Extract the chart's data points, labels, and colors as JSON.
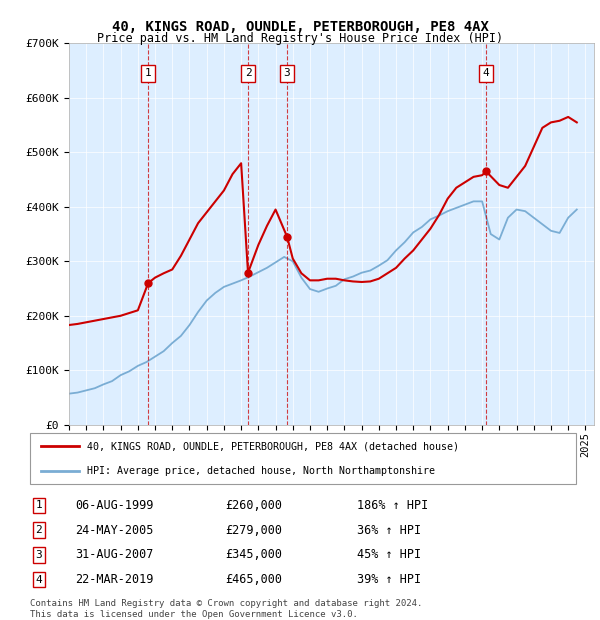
{
  "title1": "40, KINGS ROAD, OUNDLE, PETERBOROUGH, PE8 4AX",
  "title2": "Price paid vs. HM Land Registry's House Price Index (HPI)",
  "hpi_label": "HPI: Average price, detached house, North Northamptonshire",
  "property_label": "40, KINGS ROAD, OUNDLE, PETERBOROUGH, PE8 4AX (detached house)",
  "footer": "Contains HM Land Registry data © Crown copyright and database right 2024.\nThis data is licensed under the Open Government Licence v3.0.",
  "transactions": [
    {
      "num": 1,
      "date": "06-AUG-1999",
      "year": 1999.6,
      "price": 260000,
      "label": "186% ↑ HPI"
    },
    {
      "num": 2,
      "date": "24-MAY-2005",
      "year": 2005.4,
      "price": 279000,
      "label": "36% ↑ HPI"
    },
    {
      "num": 3,
      "date": "31-AUG-2007",
      "year": 2007.67,
      "price": 345000,
      "label": "45% ↑ HPI"
    },
    {
      "num": 4,
      "date": "22-MAR-2019",
      "year": 2019.23,
      "price": 465000,
      "label": "39% ↑ HPI"
    }
  ],
  "red_color": "#cc0000",
  "blue_color": "#7aadd4",
  "background_color": "#ddeeff",
  "ylim": [
    0,
    700000
  ],
  "xlim_start": 1995,
  "xlim_end": 2025.5,
  "yticks": [
    0,
    100000,
    200000,
    300000,
    400000,
    500000,
    600000,
    700000
  ],
  "ytick_labels": [
    "£0",
    "£100K",
    "£200K",
    "£300K",
    "£400K",
    "£500K",
    "£600K",
    "£700K"
  ],
  "xticks": [
    1995,
    1996,
    1997,
    1998,
    1999,
    2000,
    2001,
    2002,
    2003,
    2004,
    2005,
    2006,
    2007,
    2008,
    2009,
    2010,
    2011,
    2012,
    2013,
    2014,
    2015,
    2016,
    2017,
    2018,
    2019,
    2020,
    2021,
    2022,
    2023,
    2024,
    2025
  ],
  "hpi_x": [
    1995.0,
    1995.5,
    1996.0,
    1996.5,
    1997.0,
    1997.5,
    1998.0,
    1998.5,
    1999.0,
    1999.5,
    2000.0,
    2000.5,
    2001.0,
    2001.5,
    2002.0,
    2002.5,
    2003.0,
    2003.5,
    2004.0,
    2004.5,
    2005.0,
    2005.5,
    2006.0,
    2006.5,
    2007.0,
    2007.5,
    2008.0,
    2008.5,
    2009.0,
    2009.5,
    2010.0,
    2010.5,
    2011.0,
    2011.5,
    2012.0,
    2012.5,
    2013.0,
    2013.5,
    2014.0,
    2014.5,
    2015.0,
    2015.5,
    2016.0,
    2016.5,
    2017.0,
    2017.5,
    2018.0,
    2018.5,
    2019.0,
    2019.5,
    2020.0,
    2020.5,
    2021.0,
    2021.5,
    2022.0,
    2022.5,
    2023.0,
    2023.5,
    2024.0,
    2024.5
  ],
  "hpi_y": [
    57000,
    59000,
    63000,
    67000,
    74000,
    80000,
    91000,
    98000,
    108000,
    115000,
    125000,
    135000,
    150000,
    163000,
    183000,
    207000,
    228000,
    242000,
    253000,
    259000,
    265000,
    272000,
    280000,
    288000,
    298000,
    308000,
    300000,
    270000,
    249000,
    244000,
    250000,
    255000,
    267000,
    272000,
    279000,
    283000,
    292000,
    302000,
    320000,
    335000,
    353000,
    363000,
    377000,
    384000,
    392000,
    398000,
    404000,
    410000,
    410000,
    350000,
    340000,
    380000,
    395000,
    392000,
    380000,
    368000,
    356000,
    352000,
    380000,
    395000
  ],
  "red_x": [
    1995.0,
    1995.5,
    1996.0,
    1996.5,
    1997.0,
    1997.5,
    1998.0,
    1998.5,
    1999.0,
    1999.6,
    2000.0,
    2000.5,
    2001.0,
    2001.5,
    2002.0,
    2002.5,
    2003.0,
    2003.5,
    2004.0,
    2004.5,
    2005.0,
    2005.4,
    2006.0,
    2006.5,
    2007.0,
    2007.67,
    2008.0,
    2008.5,
    2009.0,
    2009.5,
    2010.0,
    2010.5,
    2011.0,
    2011.5,
    2012.0,
    2012.5,
    2013.0,
    2013.5,
    2014.0,
    2014.5,
    2015.0,
    2015.5,
    2016.0,
    2016.5,
    2017.0,
    2017.5,
    2018.0,
    2018.5,
    2019.0,
    2019.23,
    2020.0,
    2020.5,
    2021.0,
    2021.5,
    2022.0,
    2022.5,
    2023.0,
    2023.5,
    2024.0,
    2024.5
  ],
  "red_y": [
    183000,
    185000,
    188000,
    191000,
    194000,
    197000,
    200000,
    205000,
    210000,
    260000,
    270000,
    278000,
    285000,
    310000,
    340000,
    370000,
    390000,
    410000,
    430000,
    460000,
    480000,
    279000,
    330000,
    365000,
    395000,
    345000,
    305000,
    278000,
    265000,
    265000,
    268000,
    268000,
    265000,
    263000,
    262000,
    263000,
    268000,
    278000,
    288000,
    305000,
    320000,
    340000,
    360000,
    385000,
    415000,
    435000,
    445000,
    455000,
    458000,
    465000,
    440000,
    435000,
    455000,
    475000,
    510000,
    545000,
    555000,
    558000,
    565000,
    555000
  ]
}
